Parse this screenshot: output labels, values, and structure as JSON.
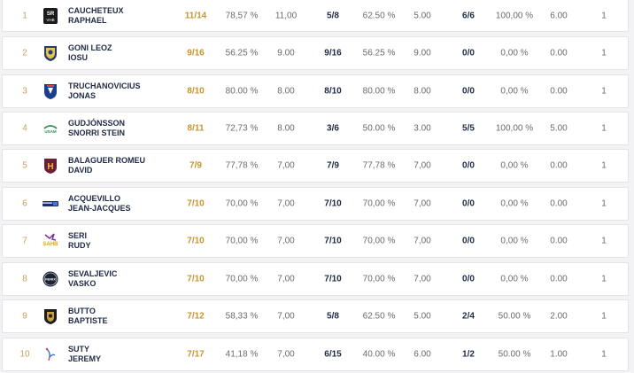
{
  "rows": [
    {
      "rank": "1",
      "club_icon": "club-logo-saint-raphael-icon",
      "last_name": "CAUCHETEUX",
      "first_name": "RAPHAEL",
      "total": "11/14",
      "total_pct": "78,57 %",
      "total_avg": "11,00",
      "g2": "5/8",
      "g2_pct": "62.50 %",
      "g2_avg": "5.00",
      "g3": "6/6",
      "g3_pct": "100,00 %",
      "g3_avg": "6.00",
      "games": "1"
    },
    {
      "rank": "2",
      "club_icon": "club-logo-shield-icon",
      "last_name": "GONI LEOZ",
      "first_name": "IOSU",
      "total": "9/16",
      "total_pct": "56.25 %",
      "total_avg": "9.00",
      "g2": "9/16",
      "g2_pct": "56.25 %",
      "g2_avg": "9.00",
      "g3": "0/0",
      "g3_pct": "0,00 %",
      "g3_avg": "0.00",
      "games": "1"
    },
    {
      "rank": "3",
      "club_icon": "club-logo-shield-blue-icon",
      "last_name": "TRUCHANOVICIUS",
      "first_name": "JONAS",
      "total": "8/10",
      "total_pct": "80.00 %",
      "total_avg": "8.00",
      "g2": "8/10",
      "g2_pct": "80.00 %",
      "g2_avg": "8.00",
      "g3": "0/0",
      "g3_pct": "0,00 %",
      "g3_avg": "0.00",
      "games": "1"
    },
    {
      "rank": "4",
      "club_icon": "club-logo-usam-icon",
      "last_name": "GUDJÓNSSON",
      "first_name": "SNORRI STEIN",
      "total": "8/11",
      "total_pct": "72,73 %",
      "total_avg": "8.00",
      "g2": "3/6",
      "g2_pct": "50.00 %",
      "g2_avg": "3.00",
      "g3": "5/5",
      "g3_pct": "100,00 %",
      "g3_avg": "5.00",
      "games": "1"
    },
    {
      "rank": "5",
      "club_icon": "club-logo-h-icon",
      "last_name": "BALAGUER ROMEU",
      "first_name": "DAVID",
      "total": "7/9",
      "total_pct": "77,78 %",
      "total_avg": "7,00",
      "g2": "7/9",
      "g2_pct": "77,78 %",
      "g2_avg": "7,00",
      "g3": "0/0",
      "g3_pct": "0,00 %",
      "g3_avg": "0.00",
      "games": "1"
    },
    {
      "rank": "6",
      "club_icon": "club-logo-banner-icon",
      "last_name": "ACQUEVILLO",
      "first_name": "JEAN-JACQUES",
      "total": "7/10",
      "total_pct": "70,00 %",
      "total_avg": "7,00",
      "g2": "7/10",
      "g2_pct": "70,00 %",
      "g2_avg": "7,00",
      "g3": "0/0",
      "g3_pct": "0,00 %",
      "g3_avg": "0.00",
      "games": "1"
    },
    {
      "rank": "7",
      "club_icon": "club-logo-sahb-icon",
      "last_name": "SERI",
      "first_name": "RUDY",
      "total": "7/10",
      "total_pct": "70,00 %",
      "total_avg": "7,00",
      "g2": "7/10",
      "g2_pct": "70,00 %",
      "g2_avg": "7,00",
      "g3": "0/0",
      "g3_pct": "0,00 %",
      "g3_avg": "0.00",
      "games": "1"
    },
    {
      "rank": "8",
      "club_icon": "club-logo-fenix-icon",
      "last_name": "SEVALJEVIC",
      "first_name": "VASKO",
      "total": "7/10",
      "total_pct": "70,00 %",
      "total_avg": "7,00",
      "g2": "7/10",
      "g2_pct": "70,00 %",
      "g2_avg": "7,00",
      "g3": "0/0",
      "g3_pct": "0,00 %",
      "g3_avg": "0.00",
      "games": "1"
    },
    {
      "rank": "9",
      "club_icon": "club-logo-crest-gold-icon",
      "last_name": "BUTTO",
      "first_name": "BAPTISTE",
      "total": "7/12",
      "total_pct": "58,33 %",
      "total_avg": "7,00",
      "g2": "5/8",
      "g2_pct": "62.50 %",
      "g2_avg": "5.00",
      "g3": "2/4",
      "g3_pct": "50.00 %",
      "g3_avg": "2.00",
      "games": "1"
    },
    {
      "rank": "10",
      "club_icon": "club-logo-bird-icon",
      "last_name": "SUTY",
      "first_name": "JEREMY",
      "total": "7/17",
      "total_pct": "41,18 %",
      "total_avg": "7,00",
      "g2": "6/15",
      "g2_pct": "40.00 %",
      "g2_avg": "6.00",
      "g3": "1/2",
      "g3_pct": "50.00 %",
      "g3_avg": "1.00",
      "games": "1"
    }
  ],
  "colors": {
    "rank": "#c9a15a",
    "total": "#c9932e",
    "name": "#1f2a44",
    "value": "#6b6b6b",
    "row_border": "#e3e3e8",
    "background": "#f3f3f5"
  }
}
